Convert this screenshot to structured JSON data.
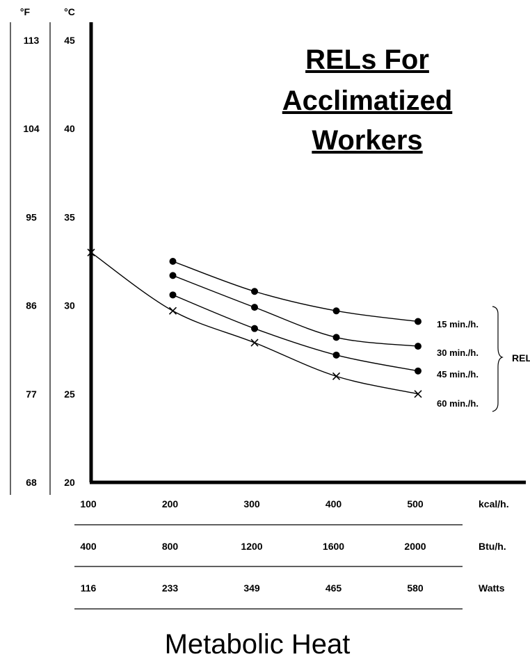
{
  "title_lines": [
    "RELs For",
    "Acclimatized",
    "Workers"
  ],
  "axis_title_x": "Metabolic Heat",
  "temp_units": {
    "f": "°F",
    "c": "°C"
  },
  "chart_data": {
    "type": "line",
    "title": "RELs For Acclimatized Workers",
    "xlabel": "Metabolic Heat",
    "ylabel": "",
    "xlim": [
      100,
      500
    ],
    "ylim": [
      20,
      45
    ],
    "y_ticks_c": [
      "45",
      "40",
      "35",
      "30",
      "25",
      "20"
    ],
    "y_ticks_f": [
      "113",
      "104",
      "95",
      "86",
      "77",
      "68"
    ],
    "x_scales": [
      {
        "unit": "kcal/h.",
        "ticks": [
          "100",
          "200",
          "300",
          "400",
          "500"
        ]
      },
      {
        "unit": "Btu/h.",
        "ticks": [
          "400",
          "800",
          "1200",
          "1600",
          "2000"
        ]
      },
      {
        "unit": "Watts",
        "ticks": [
          "116",
          "233",
          "349",
          "465",
          "580"
        ]
      }
    ],
    "bracket_label": "REL",
    "series": [
      {
        "name": "15 min./h.",
        "marker": "dot",
        "x": [
          200,
          300,
          400,
          500
        ],
        "y": [
          32.5,
          30.8,
          29.7,
          29.1
        ]
      },
      {
        "name": "30 min./h.",
        "marker": "dot",
        "x": [
          200,
          300,
          400,
          500
        ],
        "y": [
          31.7,
          29.9,
          28.2,
          27.7
        ]
      },
      {
        "name": "45 min./h.",
        "marker": "dot",
        "x": [
          200,
          300,
          400,
          500
        ],
        "y": [
          30.6,
          28.7,
          27.2,
          26.3
        ]
      },
      {
        "name": "60 min./h.",
        "marker": "x",
        "x": [
          100,
          200,
          300,
          400,
          500
        ],
        "y": [
          33.0,
          29.7,
          27.9,
          26.0,
          25.0
        ]
      }
    ]
  }
}
